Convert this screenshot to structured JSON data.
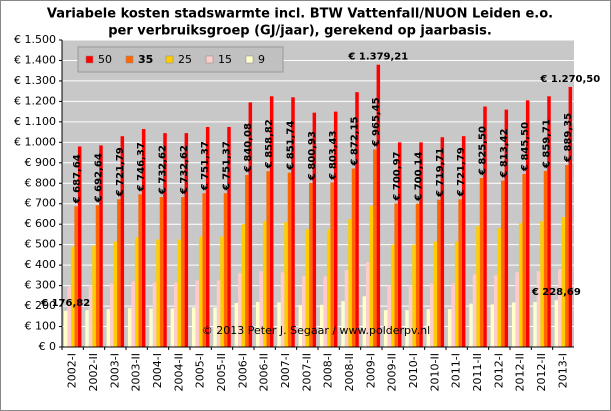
{
  "chart_data": {
    "type": "bar",
    "title": "Variabele kosten stadswarmte incl. BTW Vattenfall/NUON Leiden e.o.",
    "subtitle": "per verbruiksgroep (GJ/jaar), gerekend op jaarbasis.",
    "annotation": "© 2013 Peter J. Segaar / www.polderpv.nl",
    "categories": [
      "2002-I",
      "2002-II",
      "2003-I",
      "2003-II",
      "2004-I",
      "2004-II",
      "2005-I",
      "2005-II",
      "2006-I",
      "2006-II",
      "2007-I",
      "2007-II",
      "2008-I",
      "2008-II",
      "2009-I",
      "2009-II",
      "2010-I",
      "2010-II",
      "2011-I",
      "2011-II",
      "2012-I",
      "2012-II",
      "2012-II",
      "2013-I"
    ],
    "series": [
      {
        "name": "50",
        "color": "#ff0000",
        "values": [
          980,
          985,
          1030,
          1065,
          1045,
          1045,
          1075,
          1075,
          1195,
          1225,
          1220,
          1145,
          1150,
          1245,
          1379.21,
          1000,
          1000,
          1025,
          1030,
          1175,
          1160,
          1205,
          1225,
          1270.5
        ],
        "value_labels": [
          null,
          null,
          null,
          null,
          null,
          null,
          null,
          null,
          null,
          null,
          null,
          null,
          null,
          null,
          "€ 1.379,21",
          null,
          null,
          null,
          null,
          null,
          null,
          null,
          null,
          "€ 1.270,50"
        ]
      },
      {
        "name": "35",
        "color": "#ff6600",
        "values": [
          687.64,
          692.64,
          721.79,
          746.37,
          732.62,
          732.62,
          751.37,
          751.37,
          840.08,
          858.82,
          851.74,
          800.93,
          803.43,
          872.15,
          965.45,
          700.97,
          700.14,
          719.71,
          721.79,
          825.5,
          813.42,
          845.5,
          859.71,
          889.35
        ],
        "value_labels": [
          "€ 687,64",
          "€ 692,64",
          "€ 721,79",
          "€ 746,37",
          "€ 732,62",
          "€ 732,62",
          "€ 751,37",
          "€ 751,37",
          "€ 840,08",
          "€ 858,82",
          "€ 851,74",
          "€ 800,93",
          "€ 803,43",
          "€ 872,15",
          "€ 965,45",
          "€ 700,97",
          "€ 700,14",
          "€ 719,71",
          "€ 721,79",
          "€ 825,50",
          "€ 813,42",
          "€ 845,50",
          "€ 859,71",
          "€ 889,35"
        ]
      },
      {
        "name": "25",
        "color": "#ffcc00",
        "values": [
          490,
          495,
          515,
          535,
          525,
          525,
          540,
          540,
          600,
          615,
          610,
          575,
          575,
          625,
          690,
          500,
          500,
          515,
          515,
          590,
          580,
          605,
          615,
          635
        ]
      },
      {
        "name": "15",
        "color": "#ffcccc",
        "values": [
          295,
          300,
          310,
          320,
          315,
          315,
          325,
          325,
          360,
          370,
          365,
          345,
          345,
          375,
          415,
          300,
          300,
          310,
          310,
          355,
          350,
          365,
          370,
          380
        ]
      },
      {
        "name": "9",
        "color": "#ffffcc",
        "values": [
          176.82,
          180,
          185,
          190,
          188,
          188,
          193,
          193,
          215,
          220,
          218,
          205,
          206,
          224,
          248,
          180,
          180,
          185,
          185,
          212,
          208,
          217,
          220,
          228.69
        ],
        "value_labels": [
          "€ 176,82",
          null,
          null,
          null,
          null,
          null,
          null,
          null,
          null,
          null,
          null,
          null,
          null,
          null,
          null,
          null,
          null,
          null,
          null,
          null,
          null,
          null,
          null,
          "€ 228,69"
        ]
      }
    ],
    "ylim": [
      0,
      1500
    ],
    "yticks": [
      {
        "value": 0,
        "label": "€ 0"
      },
      {
        "value": 100,
        "label": "€ 100"
      },
      {
        "value": 200,
        "label": "€ 200"
      },
      {
        "value": 300,
        "label": "€ 300"
      },
      {
        "value": 400,
        "label": "€ 400"
      },
      {
        "value": 500,
        "label": "€ 500"
      },
      {
        "value": 600,
        "label": "€ 600"
      },
      {
        "value": 700,
        "label": "€ 700"
      },
      {
        "value": 800,
        "label": "€ 800"
      },
      {
        "value": 900,
        "label": "€ 900"
      },
      {
        "value": 1000,
        "label": "€ 1.000"
      },
      {
        "value": 1100,
        "label": "€ 1.100"
      },
      {
        "value": 1200,
        "label": "€ 1.200"
      },
      {
        "value": 1300,
        "label": "€ 1.300"
      },
      {
        "value": 1400,
        "label": "€ 1.400"
      },
      {
        "value": 1500,
        "label": "€ 1.500"
      }
    ],
    "grid": true,
    "legend": "top-left"
  }
}
